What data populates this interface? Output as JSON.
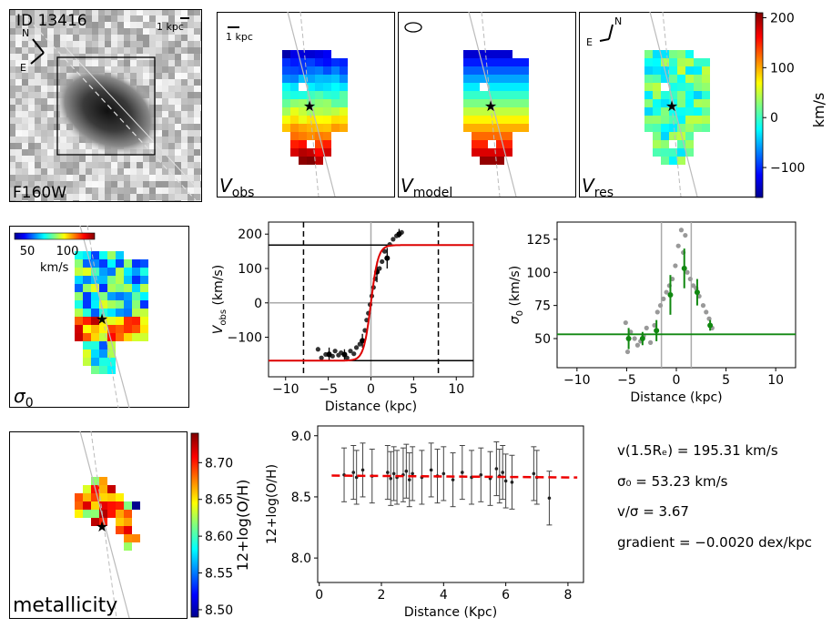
{
  "galaxy": {
    "id_label": "ID 13416",
    "filter": "F160W",
    "scale_label": "1 kpc",
    "north": "N",
    "east": "E"
  },
  "velocity_maps": {
    "scale_label": "1 kpc",
    "panels": [
      {
        "label_main": "V",
        "label_sub": "obs"
      },
      {
        "label_main": "V",
        "label_sub": "model"
      },
      {
        "label_main": "V",
        "label_sub": "res"
      }
    ],
    "north": "N",
    "east": "E",
    "colorbar": {
      "label": "km/s",
      "ticks": [
        "200",
        "100",
        "0",
        "−100"
      ],
      "range": [
        -160,
        210
      ]
    }
  },
  "sigma_map": {
    "label_main": "σ",
    "label_sub": "0",
    "colorbar_ticks": [
      "50",
      "100"
    ],
    "colorbar_unit": "km/s"
  },
  "metallicity_map": {
    "label": "metallicity",
    "colorbar_label": "12+log(O/H)",
    "colorbar_ticks": [
      "8.70",
      "8.65",
      "8.60",
      "8.55",
      "8.50"
    ],
    "range": [
      8.49,
      8.74
    ]
  },
  "chart_data": [
    {
      "type": "scatter",
      "title": "",
      "xlabel": "Distance (kpc)",
      "ylabel_main": "V",
      "ylabel_sub": "obs",
      "ylabel_unit": " (km/s)",
      "xlim": [
        -12,
        12
      ],
      "ylim": [
        -215,
        235
      ],
      "xticks": [
        -10,
        -5,
        0,
        5,
        10
      ],
      "yticks": [
        -100,
        0,
        100,
        200
      ],
      "ytick_labels": [
        "−100",
        "0",
        "100",
        "200"
      ],
      "xtick_labels": [
        "−10",
        "−5",
        "0",
        "5",
        "10"
      ],
      "points_x": [
        -6.2,
        -5.8,
        -5.3,
        -4.9,
        -4.5,
        -4.2,
        -3.8,
        -3.5,
        -3.1,
        -2.8,
        -2.4,
        -2.0,
        -1.7,
        -1.3,
        -1.0,
        -0.7,
        -0.5,
        -0.3,
        -0.1,
        0.1,
        0.3,
        0.5,
        0.7,
        1.0,
        1.3,
        1.6,
        1.9,
        2.2,
        2.6,
        3.0,
        3.3,
        3.6
      ],
      "points_y": [
        -135,
        -160,
        -150,
        -148,
        -155,
        -140,
        -152,
        -145,
        -150,
        -160,
        -140,
        -148,
        -130,
        -120,
        -110,
        -80,
        -50,
        -30,
        -5,
        20,
        45,
        70,
        90,
        100,
        120,
        150,
        130,
        170,
        185,
        195,
        200,
        205
      ],
      "errbars": [
        {
          "x": -4.9,
          "y": -150,
          "lo": -170,
          "hi": -130
        },
        {
          "x": -3.1,
          "y": -150,
          "lo": -165,
          "hi": -135
        },
        {
          "x": -1.0,
          "y": -110,
          "lo": -130,
          "hi": -90
        },
        {
          "x": 0.7,
          "y": 90,
          "lo": 60,
          "hi": 120
        },
        {
          "x": 1.9,
          "y": 130,
          "lo": 100,
          "hi": 160
        },
        {
          "x": 3.3,
          "y": 200,
          "lo": 190,
          "hi": 215
        }
      ],
      "model_vmax": 168,
      "dashed_x": [
        -7.9,
        7.9
      ]
    },
    {
      "type": "scatter",
      "title": "",
      "xlabel": "Distance (kpc)",
      "ylabel_main": "σ",
      "ylabel_sub": "0",
      "ylabel_unit": " (km/s)",
      "xlim": [
        -12,
        12
      ],
      "ylim": [
        28,
        138
      ],
      "xticks": [
        -10,
        -5,
        0,
        5,
        10
      ],
      "yticks": [
        50,
        75,
        100,
        125
      ],
      "ytick_labels": [
        "50",
        "75",
        "100",
        "125"
      ],
      "xtick_labels": [
        "−10",
        "−5",
        "0",
        "5",
        "10"
      ],
      "points_x": [
        -5.1,
        -4.9,
        -4.6,
        -4.2,
        -3.9,
        -3.6,
        -3.3,
        -3.0,
        -2.6,
        -2.2,
        -1.9,
        -1.6,
        -1.3,
        -1.0,
        -0.7,
        -0.4,
        -0.1,
        0.2,
        0.5,
        0.7,
        0.9,
        1.1,
        1.4,
        1.7,
        2.0,
        2.3,
        2.7,
        3.0,
        3.3,
        3.6
      ],
      "points_y": [
        62,
        40,
        55,
        50,
        45,
        48,
        52,
        58,
        47,
        60,
        70,
        75,
        80,
        85,
        90,
        95,
        105,
        120,
        132,
        115,
        128,
        100,
        95,
        90,
        88,
        82,
        75,
        70,
        65,
        58
      ],
      "errbars": [
        {
          "x": -4.8,
          "y": 50,
          "lo": 42,
          "hi": 58
        },
        {
          "x": -3.4,
          "y": 50,
          "lo": 45,
          "hi": 55
        },
        {
          "x": -2.0,
          "y": 56,
          "lo": 48,
          "hi": 64
        },
        {
          "x": -0.6,
          "y": 83,
          "lo": 68,
          "hi": 98
        },
        {
          "x": 0.8,
          "y": 103,
          "lo": 88,
          "hi": 118
        },
        {
          "x": 2.1,
          "y": 85,
          "lo": 75,
          "hi": 95
        },
        {
          "x": 3.4,
          "y": 60,
          "lo": 56,
          "hi": 64
        }
      ],
      "sigma0": 53.23,
      "vlines_x": [
        -1.5,
        1.5
      ]
    },
    {
      "type": "scatter",
      "title": "",
      "xlabel": "Distance (Kpc)",
      "ylabel": "12+log(O/H)",
      "xlim": [
        -0.05,
        8.5
      ],
      "ylim": [
        7.8,
        9.08
      ],
      "xticks": [
        0,
        2,
        4,
        6,
        8
      ],
      "yticks": [
        8.0,
        8.5,
        9.0
      ],
      "ytick_labels": [
        "8.0",
        "8.5",
        "9.0"
      ],
      "xtick_labels": [
        "0",
        "2",
        "4",
        "6",
        "8"
      ],
      "points_x": [
        0.8,
        1.1,
        1.2,
        1.4,
        1.7,
        2.2,
        2.3,
        2.4,
        2.5,
        2.7,
        2.8,
        2.9,
        3.0,
        3.3,
        3.6,
        3.8,
        4.0,
        4.3,
        4.6,
        4.9,
        5.2,
        5.5,
        5.7,
        5.8,
        5.9,
        6.0,
        6.2,
        6.9,
        7.0,
        7.4
      ],
      "points_y": [
        8.68,
        8.7,
        8.66,
        8.72,
        8.67,
        8.7,
        8.65,
        8.69,
        8.66,
        8.68,
        8.71,
        8.64,
        8.69,
        8.66,
        8.72,
        8.67,
        8.69,
        8.64,
        8.7,
        8.66,
        8.68,
        8.65,
        8.73,
        8.67,
        8.7,
        8.63,
        8.62,
        8.69,
        8.66,
        8.49
      ],
      "err": 0.22,
      "fit_y0": 8.675,
      "fit_slope": -0.002,
      "fit_x": [
        0.4,
        8.3
      ]
    }
  ],
  "info": {
    "vrot": "v(1.5Rₑ) = 195.31 km/s",
    "sigma0": "σ₀ = 53.23 km/s",
    "ratio": "v/σ = 3.67",
    "gradient": "gradient = −0.0020 dex/kpc"
  }
}
